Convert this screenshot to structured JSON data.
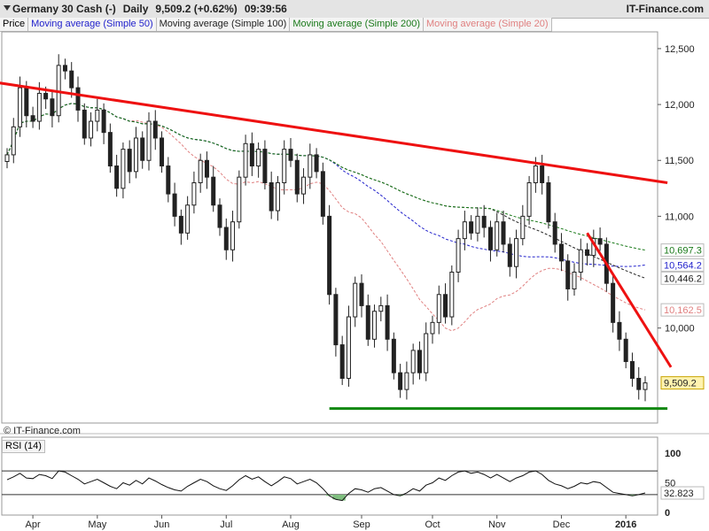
{
  "header": {
    "instrument": "Germany 30 Cash (-)",
    "interval": "Daily",
    "price_change": "9,509.2 (+0.62%)",
    "time": "09:39:56",
    "brand": "IT-Finance.com"
  },
  "legend": [
    {
      "label": "Price",
      "color": "#222222"
    },
    {
      "label": "Moving average (Simple 50)",
      "color": "#2222cc"
    },
    {
      "label": "Moving average (Simple 100)",
      "color": "#222222"
    },
    {
      "label": "Moving average (Simple 200)",
      "color": "#1a7a1a"
    },
    {
      "label": "Moving average (Simple 20)",
      "color": "#e08080"
    }
  ],
  "copyright": "© IT-Finance.com",
  "chart_data": {
    "type": "candlestick",
    "y_ticks": [
      "12,500",
      "12,000",
      "11,500",
      "11,000",
      "10,000"
    ],
    "y_range": [
      9150,
      12650
    ],
    "x_labels": [
      "Apr",
      "May",
      "Jun",
      "Jul",
      "Aug",
      "Sep",
      "Oct",
      "Nov",
      "Dec",
      "2016"
    ],
    "price_close": [
      11550,
      11800,
      12150,
      11900,
      11850,
      12100,
      12050,
      11900,
      12350,
      12300,
      12150,
      11950,
      11700,
      11850,
      11950,
      11750,
      11450,
      11250,
      11600,
      11400,
      11700,
      11500,
      11850,
      11700,
      11450,
      11200,
      11000,
      10850,
      11100,
      11300,
      11500,
      11350,
      11100,
      10900,
      10700,
      10950,
      11350,
      11650,
      11450,
      11600,
      11300,
      11050,
      11300,
      11600,
      11500,
      11200,
      11350,
      11550,
      11400,
      11000,
      10300,
      9850,
      9550,
      10100,
      10400,
      10200,
      9900,
      10150,
      10200,
      9900,
      9600,
      9450,
      9600,
      9800,
      9600,
      9950,
      10050,
      10300,
      10100,
      10500,
      10800,
      10950,
      10850,
      11000,
      10900,
      10700,
      10950,
      10750,
      10550,
      10800,
      11000,
      11300,
      11450,
      11300,
      10950,
      10750,
      10600,
      10350,
      10500,
      10700,
      10650,
      10800,
      10750,
      10400,
      10050,
      9900,
      9700,
      9550,
      9450,
      9509
    ],
    "ma_50_last": "10,564.2",
    "ma_100_last": "10,446.2",
    "ma_200_last": "10,697.3",
    "ma_20_last": "10,162.5",
    "last_price": "9,509.2",
    "annotations": [
      {
        "type": "trendline",
        "color": "#ee1111",
        "from": [
          "Mar",
          12200
        ],
        "to": [
          "Jan 2016",
          11300
        ]
      },
      {
        "type": "trendline",
        "color": "#ee1111",
        "from": [
          "Dec",
          10850
        ],
        "to": [
          "Jan 2016",
          9650
        ]
      },
      {
        "type": "support",
        "color": "#118811",
        "from": [
          "Aug",
          9280
        ],
        "to": [
          "Jan 2016",
          9280
        ]
      }
    ],
    "rsi": {
      "label": "RSI (14)",
      "y_ticks": [
        "100",
        "50",
        "0"
      ],
      "y_range": [
        0,
        100
      ],
      "overbought": 70,
      "oversold": 30,
      "last_value": "32.823",
      "values": [
        55,
        60,
        66,
        58,
        57,
        64,
        62,
        57,
        70,
        68,
        62,
        56,
        48,
        52,
        56,
        50,
        44,
        40,
        50,
        46,
        54,
        48,
        58,
        53,
        47,
        42,
        38,
        36,
        44,
        50,
        56,
        52,
        45,
        40,
        37,
        45,
        55,
        62,
        56,
        60,
        52,
        45,
        52,
        60,
        57,
        48,
        52,
        56,
        50,
        40,
        28,
        22,
        20,
        32,
        40,
        38,
        34,
        40,
        42,
        36,
        30,
        28,
        33,
        40,
        36,
        46,
        50,
        58,
        54,
        62,
        68,
        70,
        66,
        68,
        64,
        58,
        64,
        58,
        52,
        58,
        62,
        68,
        70,
        64,
        54,
        48,
        45,
        40,
        44,
        50,
        48,
        52,
        50,
        42,
        34,
        32,
        30,
        28,
        30,
        32.8
      ]
    }
  }
}
